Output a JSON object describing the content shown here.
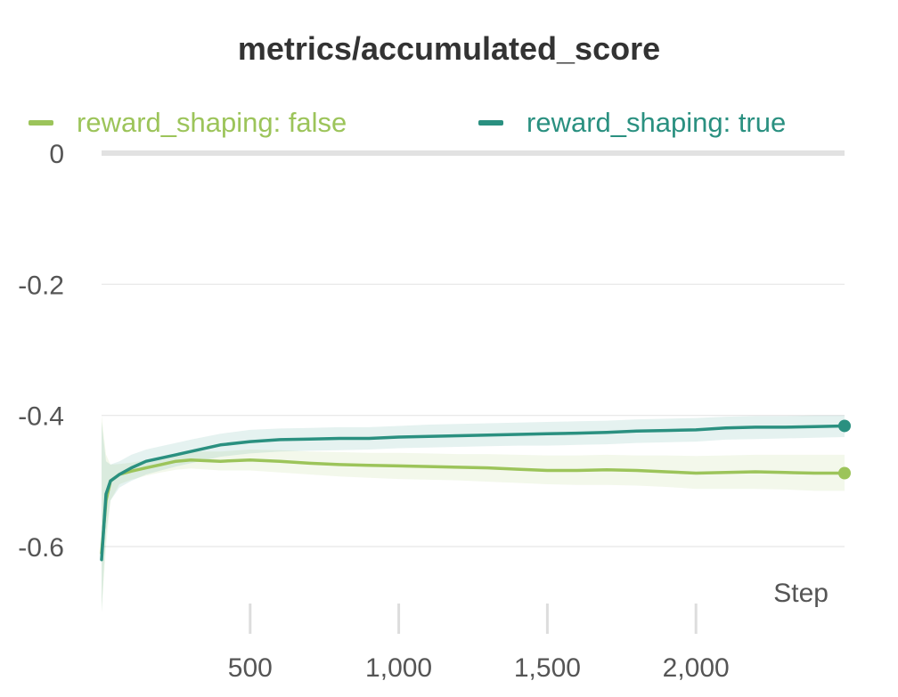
{
  "chart_data": {
    "type": "line",
    "title": "metrics/accumulated_score",
    "xlabel": "Step",
    "ylabel": "",
    "xlim": [
      0,
      2500
    ],
    "ylim": [
      -0.7,
      0
    ],
    "x_ticks": [
      500,
      1000,
      1500,
      2000
    ],
    "x_tick_labels": [
      "500",
      "1,000",
      "1,500",
      "2,000"
    ],
    "y_ticks": [
      0,
      -0.2,
      -0.4,
      -0.6
    ],
    "y_tick_labels": [
      "0",
      "-0.2",
      "-0.4",
      "-0.6"
    ],
    "grid": true,
    "legend": "top",
    "series": [
      {
        "name": "reward_shaping: false",
        "color": "#9cc45a",
        "x": [
          0,
          15,
          30,
          60,
          100,
          150,
          200,
          250,
          300,
          400,
          500,
          600,
          700,
          800,
          900,
          1000,
          1100,
          1200,
          1300,
          1400,
          1500,
          1600,
          1700,
          1800,
          1900,
          2000,
          2100,
          2200,
          2300,
          2400,
          2500
        ],
        "y": [
          -0.61,
          -0.53,
          -0.5,
          -0.49,
          -0.485,
          -0.48,
          -0.475,
          -0.47,
          -0.468,
          -0.47,
          -0.468,
          -0.47,
          -0.473,
          -0.475,
          -0.476,
          -0.477,
          -0.478,
          -0.479,
          -0.48,
          -0.482,
          -0.484,
          -0.484,
          -0.483,
          -0.484,
          -0.486,
          -0.488,
          -0.487,
          -0.486,
          -0.487,
          -0.488,
          -0.488
        ],
        "band_upper": [
          -0.4,
          -0.46,
          -0.475,
          -0.474,
          -0.472,
          -0.468,
          -0.463,
          -0.458,
          -0.455,
          -0.455,
          -0.452,
          -0.453,
          -0.455,
          -0.456,
          -0.457,
          -0.457,
          -0.458,
          -0.459,
          -0.459,
          -0.46,
          -0.461,
          -0.461,
          -0.46,
          -0.461,
          -0.461,
          -0.462,
          -0.461,
          -0.46,
          -0.46,
          -0.46,
          -0.46
        ],
        "band_lower": [
          -0.7,
          -0.6,
          -0.53,
          -0.505,
          -0.498,
          -0.492,
          -0.487,
          -0.483,
          -0.481,
          -0.484,
          -0.484,
          -0.487,
          -0.49,
          -0.493,
          -0.495,
          -0.497,
          -0.498,
          -0.499,
          -0.501,
          -0.503,
          -0.505,
          -0.506,
          -0.506,
          -0.507,
          -0.509,
          -0.512,
          -0.512,
          -0.512,
          -0.513,
          -0.515,
          -0.515
        ]
      },
      {
        "name": "reward_shaping: true",
        "color": "#2a9080",
        "x": [
          0,
          15,
          30,
          60,
          100,
          150,
          200,
          250,
          300,
          400,
          500,
          600,
          700,
          800,
          900,
          1000,
          1100,
          1200,
          1300,
          1400,
          1500,
          1600,
          1700,
          1800,
          1900,
          2000,
          2100,
          2200,
          2300,
          2400,
          2500
        ],
        "y": [
          -0.62,
          -0.52,
          -0.5,
          -0.49,
          -0.48,
          -0.47,
          -0.465,
          -0.46,
          -0.455,
          -0.445,
          -0.44,
          -0.437,
          -0.436,
          -0.435,
          -0.435,
          -0.433,
          -0.432,
          -0.431,
          -0.43,
          -0.429,
          -0.428,
          -0.427,
          -0.426,
          -0.424,
          -0.423,
          -0.422,
          -0.419,
          -0.418,
          -0.418,
          -0.417,
          -0.416
        ],
        "band_upper": [
          -0.41,
          -0.47,
          -0.475,
          -0.47,
          -0.46,
          -0.452,
          -0.447,
          -0.442,
          -0.437,
          -0.428,
          -0.422,
          -0.42,
          -0.419,
          -0.418,
          -0.418,
          -0.416,
          -0.414,
          -0.413,
          -0.412,
          -0.411,
          -0.41,
          -0.409,
          -0.408,
          -0.406,
          -0.405,
          -0.404,
          -0.402,
          -0.401,
          -0.401,
          -0.4,
          -0.4
        ],
        "band_lower": [
          -0.7,
          -0.58,
          -0.53,
          -0.51,
          -0.5,
          -0.49,
          -0.484,
          -0.478,
          -0.473,
          -0.463,
          -0.458,
          -0.455,
          -0.454,
          -0.453,
          -0.452,
          -0.45,
          -0.449,
          -0.448,
          -0.447,
          -0.446,
          -0.446,
          -0.445,
          -0.444,
          -0.442,
          -0.441,
          -0.44,
          -0.437,
          -0.436,
          -0.435,
          -0.434,
          -0.433
        ]
      }
    ]
  }
}
